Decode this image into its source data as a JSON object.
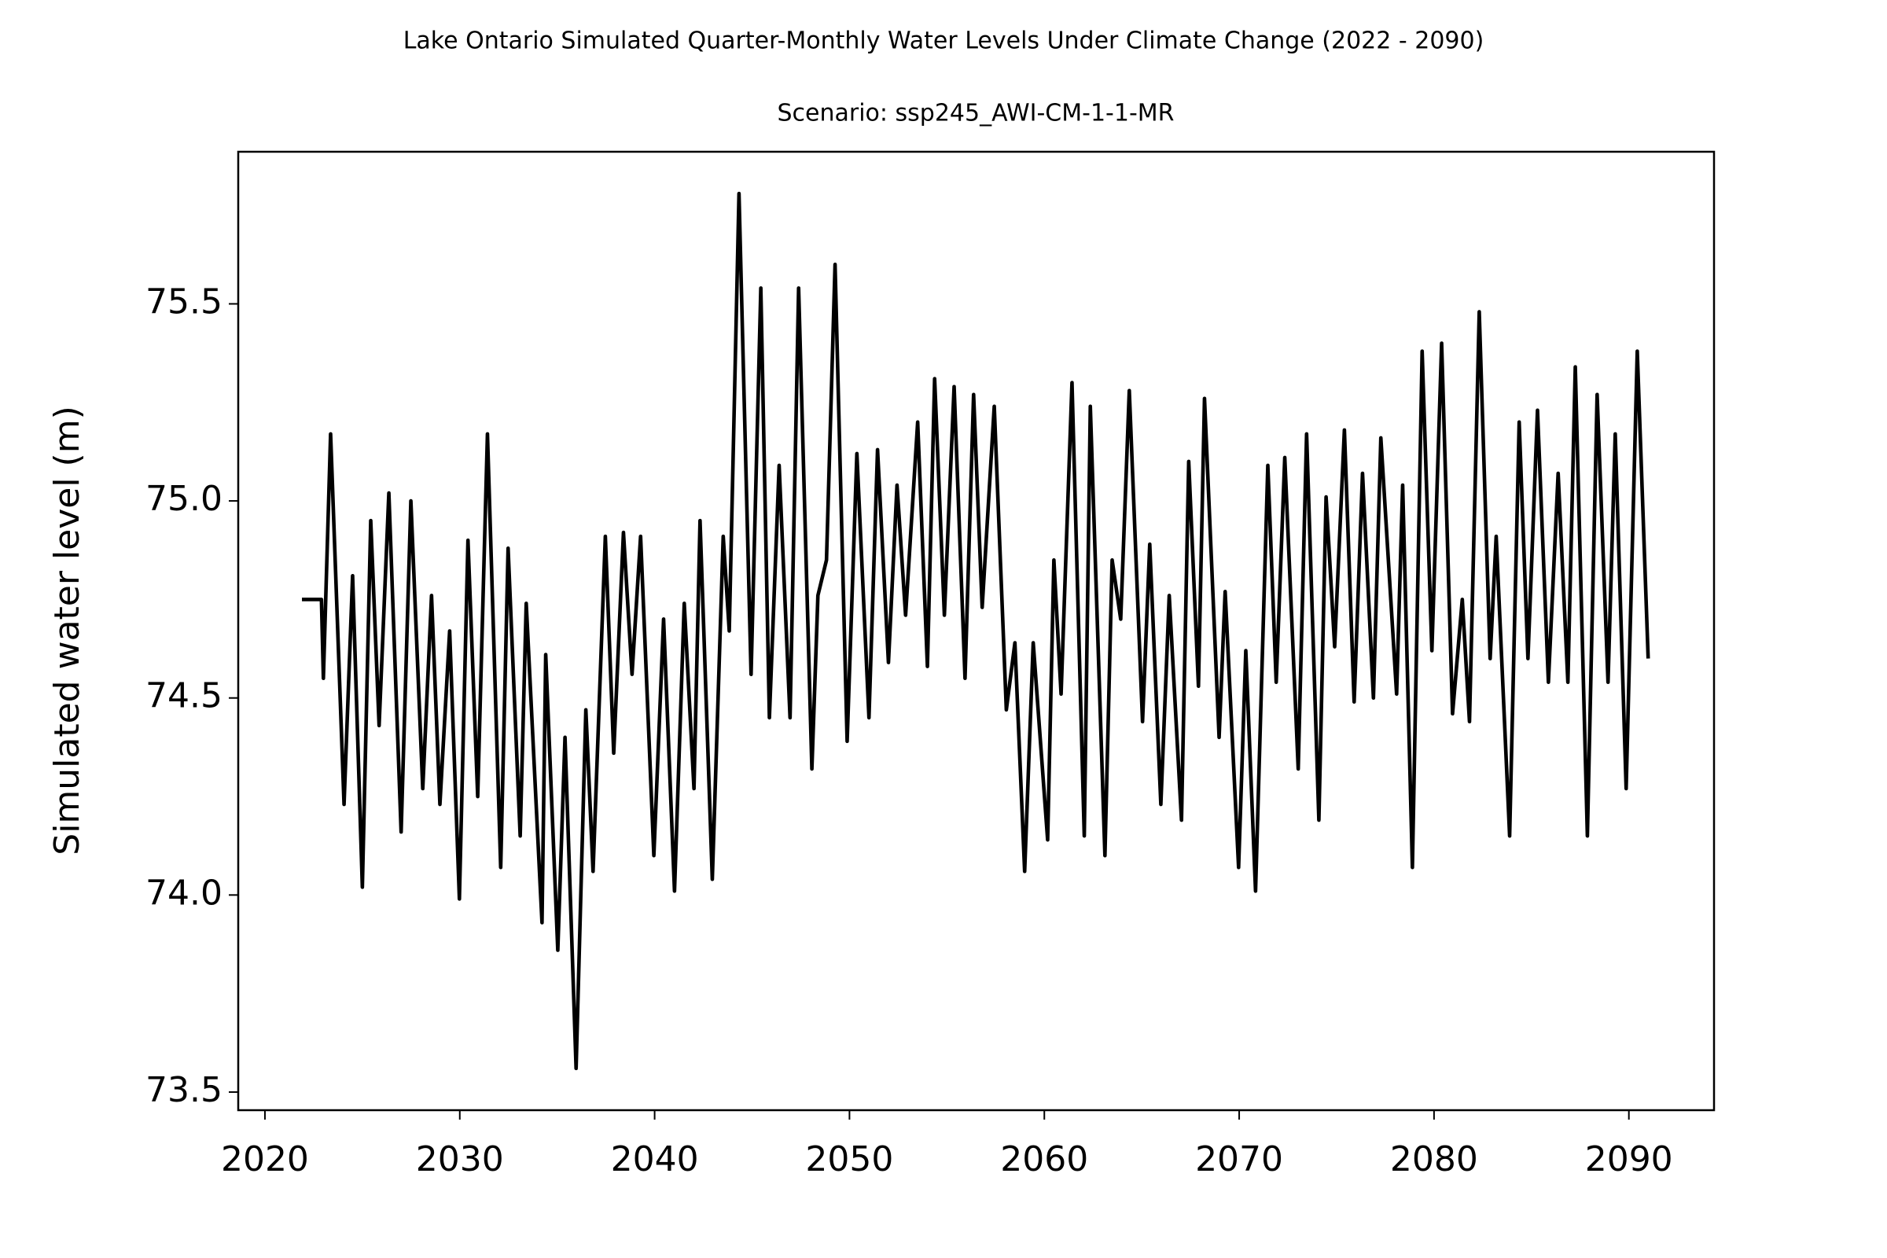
{
  "chart_data": {
    "type": "line",
    "title": "Lake Ontario Simulated Quarter-Monthly Water Levels Under Climate Change (2022 - 2090)",
    "subtitle": "Scenario: ssp245_AWI-CM-1-1-MR",
    "y_label": "Simulated water level (m)",
    "xlim": [
      2018.63,
      2094.37
    ],
    "ylim": [
      73.454,
      75.886
    ],
    "xticks": [
      2020,
      2030,
      2040,
      2050,
      2060,
      2070,
      2080,
      2090
    ],
    "yticks": [
      73.5,
      {
        "value": 74,
        "label": "74.0"
      },
      74.5,
      {
        "value": 75,
        "label": "75.0"
      },
      75.5
    ],
    "grid": false,
    "series": [
      {
        "color": "#000000",
        "x": [
          2021.9,
          2022.9,
          2023.0,
          2023.37,
          2024.06,
          2024.5,
          2025.0,
          2025.43,
          2025.86,
          2026.36,
          2026.99,
          2027.49,
          2028.1,
          2028.55,
          2028.98,
          2029.48,
          2029.98,
          2030.42,
          2030.92,
          2031.42,
          2032.1,
          2032.48,
          2033.1,
          2033.41,
          2034.22,
          2034.41,
          2035.03,
          2035.4,
          2035.97,
          2036.47,
          2036.84,
          2037.47,
          2037.9,
          2038.4,
          2038.84,
          2039.28,
          2039.96,
          2040.46,
          2041.02,
          2041.52,
          2042.02,
          2042.33,
          2042.96,
          2043.52,
          2043.83,
          2044.33,
          2044.95,
          2045.45,
          2045.89,
          2046.39,
          2046.95,
          2047.39,
          2048.07,
          2048.38,
          2048.82,
          2049.26,
          2049.88,
          2050.38,
          2051.0,
          2051.44,
          2052.0,
          2052.44,
          2052.88,
          2053.5,
          2054.0,
          2054.37,
          2054.87,
          2055.37,
          2055.93,
          2056.37,
          2056.81,
          2057.43,
          2058.05,
          2058.49,
          2058.99,
          2059.43,
          2060.17,
          2060.49,
          2060.86,
          2061.42,
          2062.05,
          2062.36,
          2063.11,
          2063.48,
          2063.92,
          2064.36,
          2065.04,
          2065.41,
          2065.98,
          2066.41,
          2067.04,
          2067.41,
          2067.91,
          2068.22,
          2068.97,
          2069.28,
          2069.97,
          2070.34,
          2070.84,
          2071.47,
          2071.9,
          2072.34,
          2073.03,
          2073.46,
          2074.09,
          2074.46,
          2074.9,
          2075.4,
          2075.9,
          2076.33,
          2076.89,
          2077.27,
          2078.08,
          2078.39,
          2078.89,
          2079.39,
          2079.89,
          2080.39,
          2080.95,
          2081.45,
          2081.82,
          2082.32,
          2082.88,
          2083.19,
          2083.88,
          2084.37,
          2084.82,
          2085.31,
          2085.87,
          2086.37,
          2086.87,
          2087.25,
          2087.87,
          2088.37,
          2088.93,
          2089.3,
          2089.86,
          2090.43,
          2090.99
        ],
        "values": [
          74.75,
          74.75,
          74.55,
          75.17,
          74.23,
          74.81,
          74.02,
          74.95,
          74.43,
          75.02,
          74.16,
          75.0,
          74.27,
          74.76,
          74.23,
          74.67,
          73.99,
          74.9,
          74.25,
          75.17,
          74.07,
          74.88,
          74.15,
          74.74,
          73.93,
          74.61,
          73.86,
          74.4,
          73.56,
          74.47,
          74.06,
          74.91,
          74.36,
          74.92,
          74.56,
          74.91,
          74.1,
          74.7,
          74.01,
          74.74,
          74.27,
          74.95,
          74.04,
          74.91,
          74.67,
          75.78,
          74.56,
          75.54,
          74.45,
          75.09,
          74.45,
          75.54,
          74.32,
          74.76,
          74.85,
          75.6,
          74.39,
          75.12,
          74.45,
          75.13,
          74.59,
          75.04,
          74.71,
          75.2,
          74.58,
          75.31,
          74.71,
          75.29,
          74.55,
          75.27,
          74.73,
          75.24,
          74.47,
          74.64,
          74.06,
          74.64,
          74.14,
          74.85,
          74.51,
          75.3,
          74.15,
          75.24,
          74.1,
          74.85,
          74.7,
          75.28,
          74.44,
          74.89,
          74.23,
          74.76,
          74.19,
          75.1,
          74.53,
          75.26,
          74.4,
          74.77,
          74.07,
          74.62,
          74.01,
          75.09,
          74.54,
          75.11,
          74.32,
          75.17,
          74.19,
          75.01,
          74.63,
          75.18,
          74.49,
          75.07,
          74.5,
          75.16,
          74.51,
          75.04,
          74.07,
          75.38,
          74.62,
          75.4,
          74.46,
          74.75,
          74.44,
          75.48,
          74.6,
          74.91,
          74.15,
          75.2,
          74.6,
          75.23,
          74.54,
          75.07,
          74.54,
          75.34,
          74.15,
          75.27,
          74.54,
          75.17,
          74.27,
          75.38,
          74.6
        ]
      }
    ]
  }
}
